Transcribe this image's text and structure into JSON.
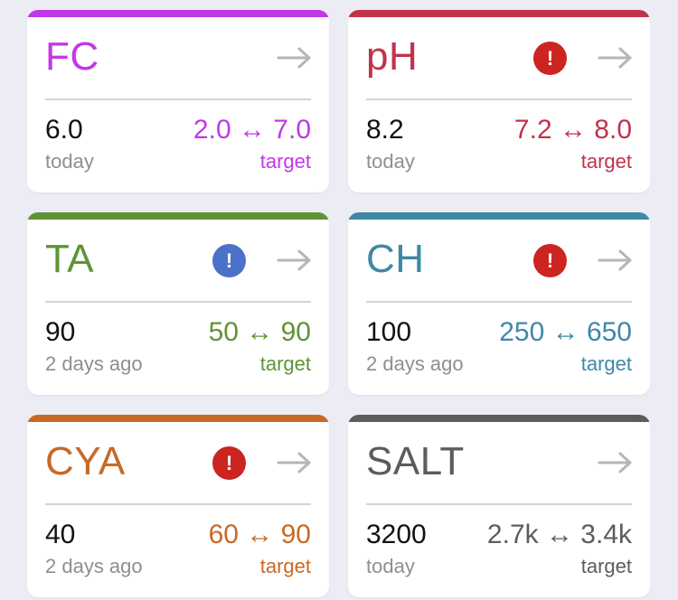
{
  "colors": {
    "fc": "#c238e6",
    "ph": "#c1334b",
    "ta": "#5e9436",
    "ch": "#3f88a6",
    "cya": "#c76a27",
    "salt": "#5c5c5c",
    "alert_red": "#cc2521",
    "alert_blue": "#4b72c8",
    "arrow": "#b5b5ba"
  },
  "cards": {
    "fc": {
      "name": "FC",
      "value": "6.0",
      "when": "today",
      "range": "2.0 ↔ 7.0",
      "target_label": "target",
      "alert": null,
      "icon": "arrow-right-icon"
    },
    "ph": {
      "name": "pH",
      "value": "8.2",
      "when": "today",
      "range": "7.2 ↔ 8.0",
      "target_label": "target",
      "alert": "!",
      "icon": "arrow-right-icon"
    },
    "ta": {
      "name": "TA",
      "value": "90",
      "when": "2 days ago",
      "range": "50 ↔ 90",
      "target_label": "target",
      "alert": "!",
      "icon": "arrow-right-icon"
    },
    "ch": {
      "name": "CH",
      "value": "100",
      "when": "2 days ago",
      "range": "250 ↔ 650",
      "target_label": "target",
      "alert": "!",
      "icon": "arrow-right-icon"
    },
    "cya": {
      "name": "CYA",
      "value": "40",
      "when": "2 days ago",
      "range": "60 ↔ 90",
      "target_label": "target",
      "alert": "!",
      "icon": "arrow-right-icon"
    },
    "salt": {
      "name": "SALT",
      "value": "3200",
      "when": "today",
      "range": "2.7k ↔ 3.4k",
      "target_label": "target",
      "alert": null,
      "icon": "arrow-right-icon"
    }
  }
}
